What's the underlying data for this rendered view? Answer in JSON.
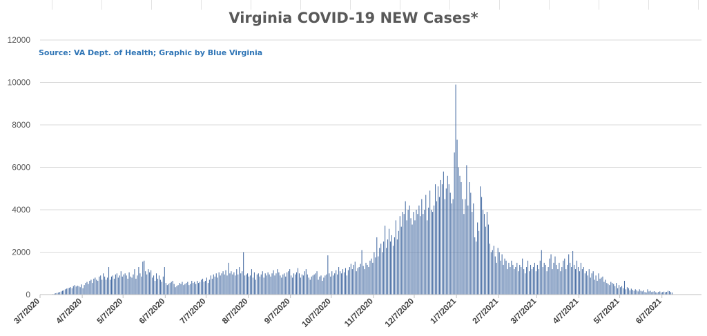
{
  "chart_data": {
    "type": "bar",
    "title": "Virginia COVID-19 NEW Cases*",
    "annotation": "Source: VA Dept. of Health; Graphic by Blue Virginia",
    "xlabel": "",
    "ylabel": "",
    "ylim": [
      0,
      12000
    ],
    "y_ticks": [
      0,
      2000,
      4000,
      6000,
      8000,
      10000,
      12000
    ],
    "x_ticks": [
      "3/7/2020",
      "4/7/2020",
      "5/7/2020",
      "6/7/2020",
      "7/7/2020",
      "8/7/2020",
      "9/7/2020",
      "10/7/2020",
      "11/7/2020",
      "12/7/2020",
      "1/7/2021",
      "2/7/2021",
      "3/7/2021",
      "4/7/2021",
      "5/7/2021",
      "6/7/2021"
    ],
    "x_range": [
      "3/7/2020",
      "6/30/2021"
    ],
    "grid": true,
    "legend": "none",
    "bar_color": "#4a6fa5",
    "series": [
      {
        "x_start": "3/7/2020",
        "interval": "daily",
        "values_by_week": [
          [
            0,
            0,
            0,
            2,
            1,
            5,
            8
          ],
          [
            10,
            15,
            25,
            45,
            60,
            80,
            100
          ],
          [
            120,
            150,
            180,
            200,
            250,
            280,
            300
          ],
          [
            320,
            350,
            300,
            400,
            450,
            380,
            420
          ],
          [
            400,
            350,
            480,
            300,
            450,
            550,
            600
          ],
          [
            500,
            650,
            700,
            550,
            750,
            800,
            700
          ],
          [
            650,
            850,
            900,
            700,
            1000,
            850,
            700
          ],
          [
            800,
            1300,
            700,
            850,
            900,
            750,
            950
          ],
          [
            1000,
            800,
            900,
            1100,
            850,
            950,
            1000
          ],
          [
            900,
            750,
            1050,
            850,
            800,
            950,
            1200
          ],
          [
            750,
            900,
            1300,
            1000,
            850,
            1550,
            1600
          ],
          [
            1100,
            950,
            1200,
            1050,
            1150,
            800,
            900
          ],
          [
            650,
            1000,
            750,
            900,
            700,
            600,
            850
          ],
          [
            1300,
            550,
            450,
            500,
            550,
            600,
            650
          ],
          [
            500,
            350,
            400,
            450,
            550,
            500,
            600
          ],
          [
            450,
            500,
            550,
            600,
            450,
            500,
            650
          ],
          [
            550,
            600,
            500,
            650,
            550,
            600,
            700
          ],
          [
            750,
            600,
            650,
            800,
            550,
            700,
            900
          ],
          [
            750,
            950,
            850,
            1000,
            800,
            1050,
            900
          ],
          [
            1000,
            1100,
            950,
            1150,
            900,
            1500,
            1000
          ],
          [
            1100,
            950,
            1050,
            900,
            1200,
            950,
            1300
          ],
          [
            1000,
            1100,
            2000,
            900,
            950,
            1000,
            850
          ],
          [
            900,
            1200,
            800,
            1050,
            700,
            950,
            1000
          ],
          [
            850,
            950,
            1100,
            800,
            1000,
            900,
            1050
          ],
          [
            950,
            850,
            1000,
            1150,
            900,
            1000,
            1200
          ],
          [
            1050,
            900,
            800,
            950,
            1000,
            850,
            1050
          ],
          [
            1100,
            1200,
            900,
            800,
            1000,
            950,
            1050
          ],
          [
            1250,
            1000,
            800,
            950,
            900,
            1100,
            1200
          ],
          [
            950,
            800,
            700,
            850,
            900,
            950,
            1000
          ],
          [
            1100,
            700,
            850,
            900,
            650,
            800,
            900
          ],
          [
            950,
            1850,
            1000,
            850,
            1100,
            900,
            1000
          ],
          [
            1150,
            950,
            1300,
            1100,
            1000,
            1200,
            1050
          ],
          [
            1250,
            900,
            1150,
            1300,
            1450,
            1200,
            1400
          ],
          [
            1550,
            1100,
            1250,
            1300,
            1450,
            2100,
            1350
          ],
          [
            1200,
            1500,
            1400,
            1300,
            1600,
            1700,
            1500
          ],
          [
            2000,
            1750,
            2700,
            1800,
            2200,
            2400,
            2000
          ],
          [
            2500,
            3250,
            2200,
            2600,
            3100,
            2500,
            2800
          ],
          [
            2300,
            2700,
            3500,
            2600,
            3000,
            3700,
            3200
          ],
          [
            3900,
            3800,
            4400,
            3500,
            4000,
            4200,
            3600
          ],
          [
            3300,
            3900,
            3500,
            4000,
            3800,
            4200,
            3700
          ],
          [
            4500,
            3800,
            4000,
            4700,
            3500,
            4100,
            4900
          ],
          [
            4000,
            3900,
            4200,
            5200,
            4400,
            5100,
            4600
          ],
          [
            5400,
            5200,
            5800,
            4500,
            5000,
            5600,
            5200
          ],
          [
            4800,
            4300,
            4500,
            6700,
            9900,
            7300,
            6000
          ],
          [
            5600,
            5300,
            4500,
            3800,
            4500,
            6100,
            4200
          ],
          [
            5300,
            4800,
            3900,
            4300,
            2700,
            2500,
            3400
          ],
          [
            3000,
            5100,
            4600,
            4000,
            3800,
            3200,
            3900
          ],
          [
            3300,
            2400,
            2000,
            2100,
            2300,
            1800,
            1500
          ],
          [
            2200,
            2000,
            1600,
            1900,
            1400,
            1700,
            1600
          ],
          [
            1200,
            1500,
            1300,
            1600,
            1400,
            1200,
            1300
          ],
          [
            1500,
            1100,
            1400,
            1300,
            1700,
            1200,
            1000
          ],
          [
            1300,
            1600,
            1100,
            1400,
            1200,
            1300,
            1500
          ],
          [
            1100,
            1400,
            1200,
            1600,
            2100,
            1300,
            1500
          ],
          [
            1400,
            1100,
            1300,
            1700,
            1900,
            1200,
            1500
          ],
          [
            1800,
            1400,
            1200,
            1500,
            1100,
            1300,
            1600
          ],
          [
            1700,
            1200,
            1400,
            1900,
            1500,
            1300,
            2050
          ],
          [
            1400,
            1200,
            1600,
            1300,
            1100,
            1500,
            1200
          ],
          [
            1300,
            1000,
            1100,
            900,
            1200,
            800,
            1000
          ],
          [
            1100,
            700,
            900,
            650,
            1000,
            750,
            800
          ],
          [
            850,
            600,
            700,
            550,
            500,
            450,
            600
          ],
          [
            550,
            500,
            400,
            550,
            300,
            450,
            350
          ],
          [
            400,
            300,
            650,
            250,
            350,
            300,
            200
          ],
          [
            280,
            220,
            180,
            250,
            200,
            150,
            250
          ],
          [
            180,
            150,
            200,
            120,
            100,
            250,
            150
          ],
          [
            180,
            120,
            140,
            160,
            110,
            90,
            130
          ],
          [
            150,
            100,
            120,
            140,
            110,
            130,
            180
          ],
          [
            160,
            120,
            100
          ]
        ]
      }
    ]
  }
}
